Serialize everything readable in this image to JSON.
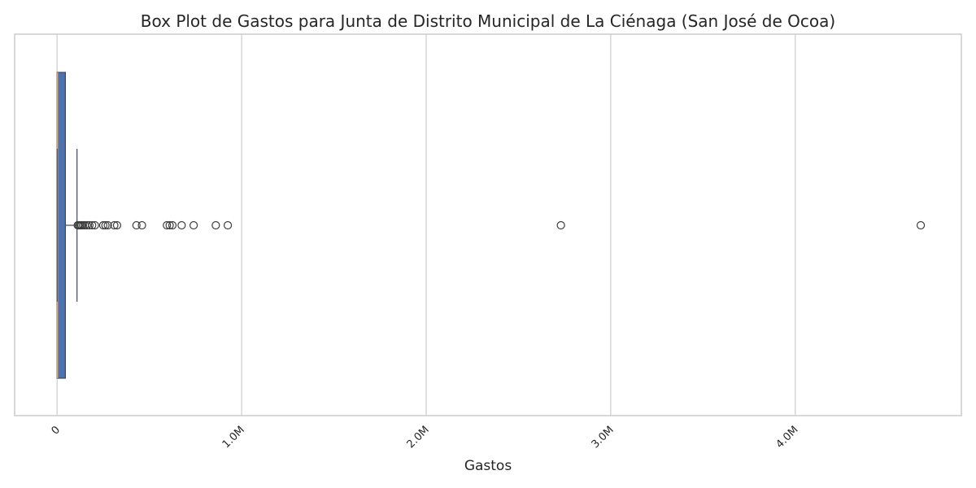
{
  "chart_data": {
    "type": "box",
    "title": "Box Plot de Gastos para Junta de Distrito Municipal de La Ciénaga (San José de Ocoa)",
    "xlabel": "Gastos",
    "ylabel": "",
    "xlim": [
      -230000,
      4900000
    ],
    "x_ticks": [
      {
        "value": 0,
        "label": "0"
      },
      {
        "value": 1000000,
        "label": "1.0M"
      },
      {
        "value": 2000000,
        "label": "2.0M"
      },
      {
        "value": 3000000,
        "label": "3.0M"
      },
      {
        "value": 4000000,
        "label": "4.0M"
      }
    ],
    "grid": true,
    "box_color": "#4c72b0",
    "median_color": "#e8a060",
    "box": {
      "whisker_low": 0,
      "q1": 0,
      "median": 2000,
      "q3": 45000,
      "whisker_high": 108000
    },
    "outliers": [
      112000,
      118000,
      125000,
      132000,
      140000,
      150000,
      162000,
      175000,
      190000,
      205000,
      250000,
      262000,
      275000,
      310000,
      325000,
      430000,
      460000,
      595000,
      610000,
      625000,
      675000,
      740000,
      860000,
      925000,
      2730000,
      4680000
    ]
  }
}
